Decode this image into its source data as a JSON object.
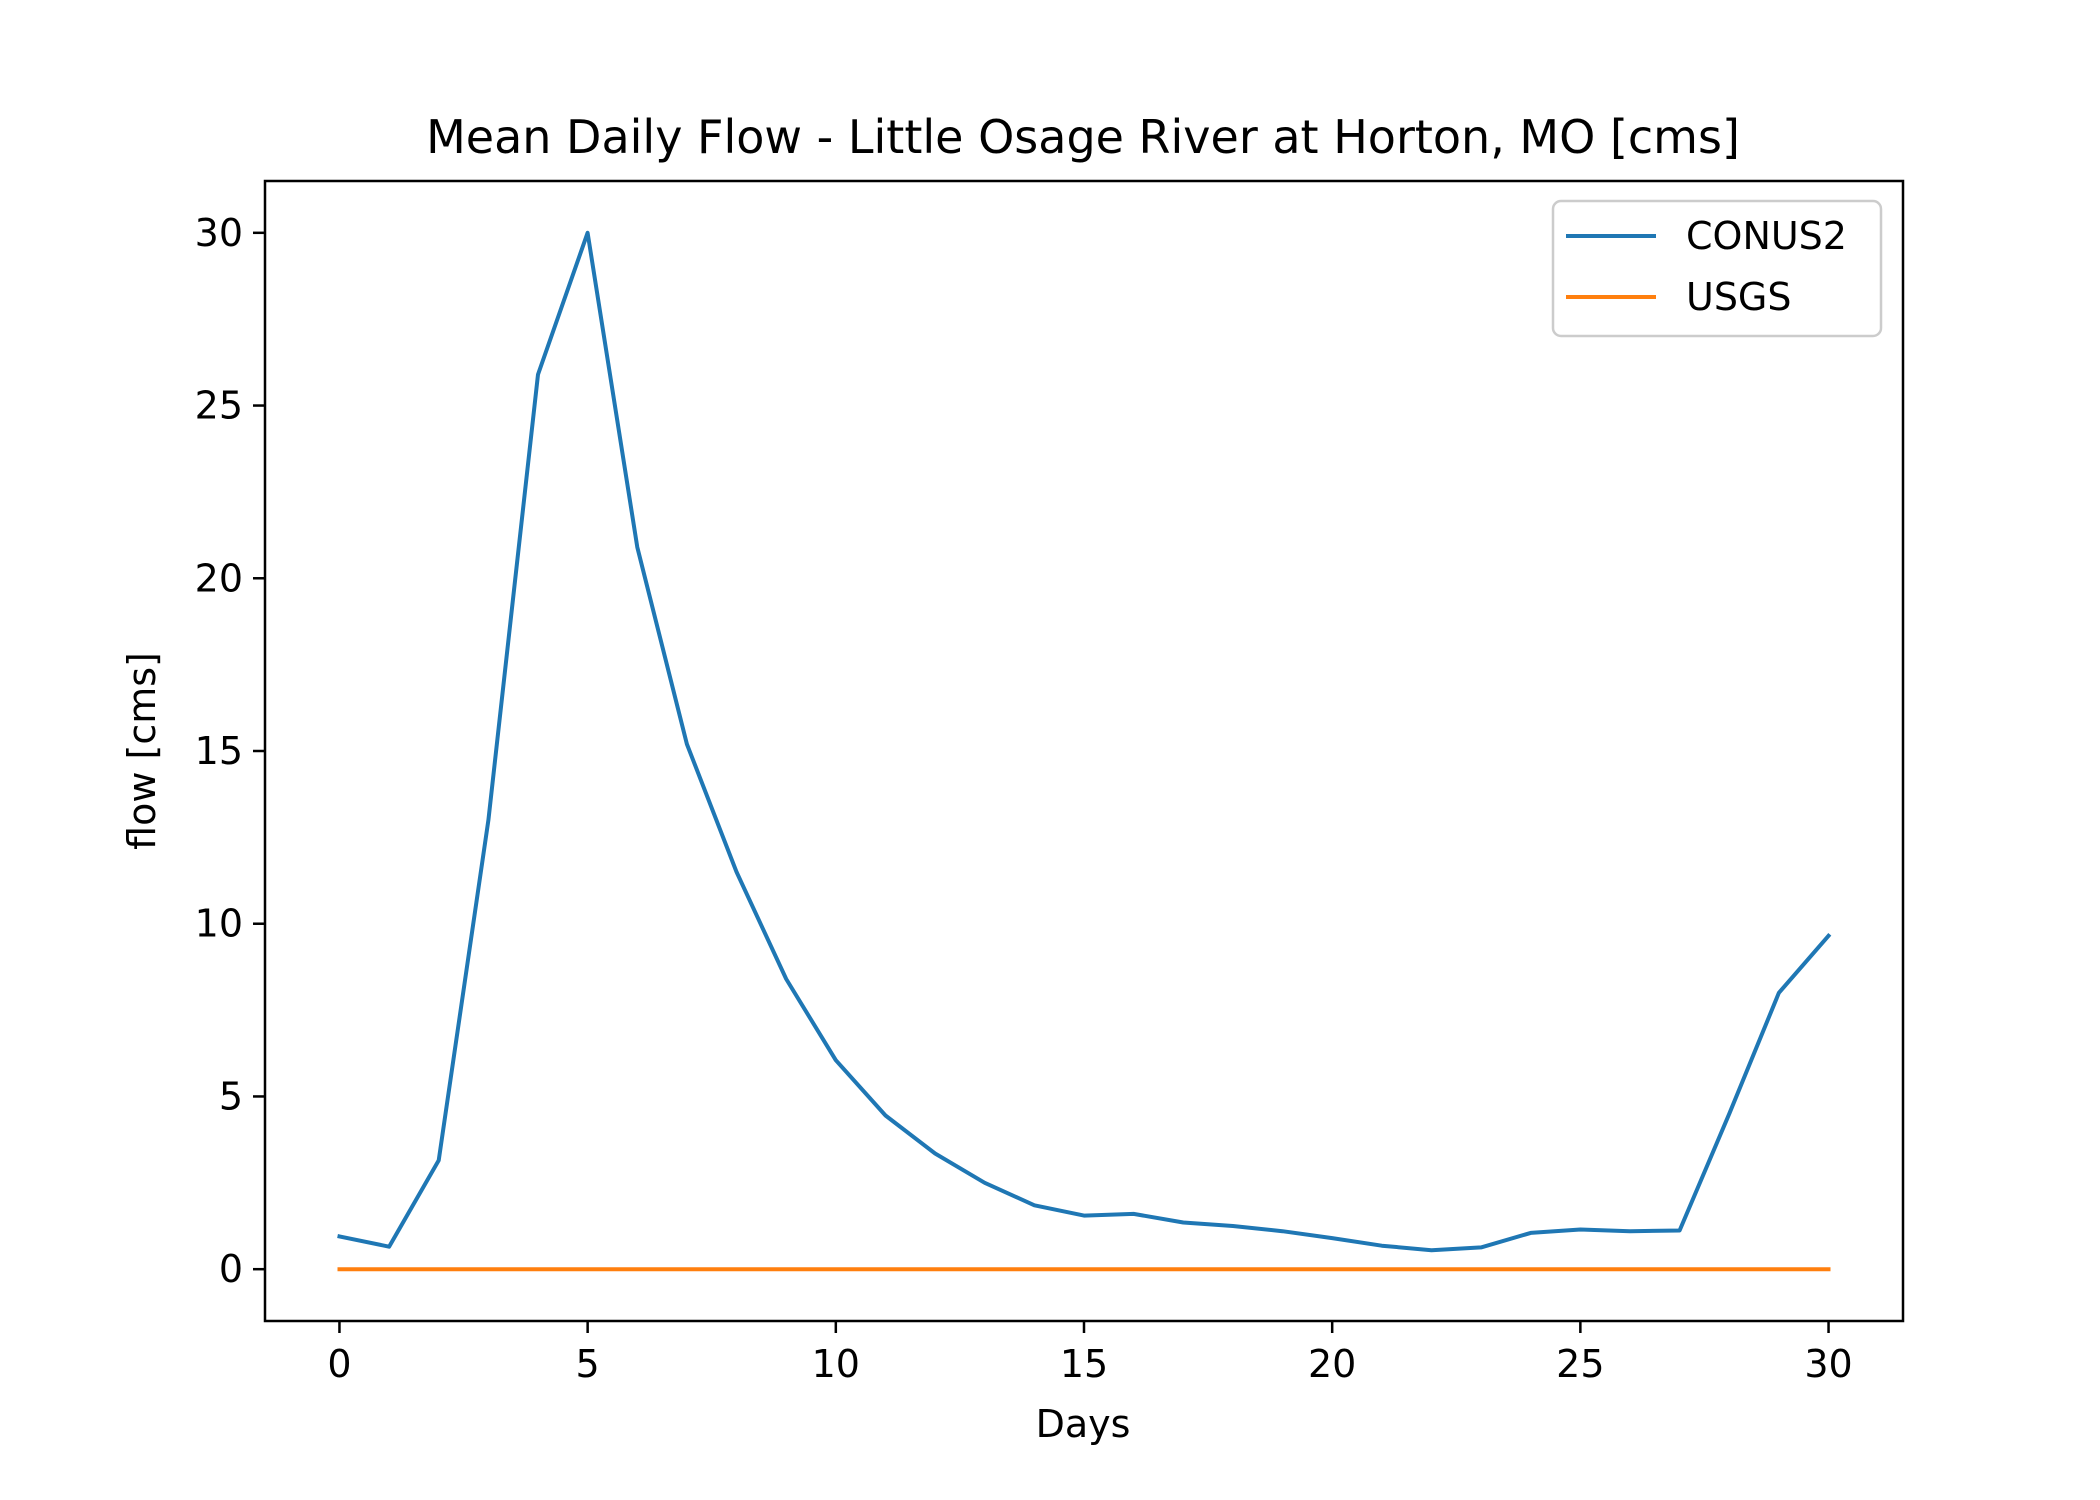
{
  "chart_data": {
    "type": "line",
    "title": "Mean Daily Flow - Little Osage River at Horton, MO [cms]",
    "xlabel": "Days",
    "ylabel": "flow [cms]",
    "xlim": [
      -1.5,
      31.5
    ],
    "ylim": [
      -1.5,
      31.5
    ],
    "xticks": [
      0,
      5,
      10,
      15,
      20,
      25,
      30
    ],
    "yticks": [
      0,
      5,
      10,
      15,
      20,
      25,
      30
    ],
    "grid": false,
    "legend_position": "top-right",
    "x": [
      0,
      1,
      2,
      3,
      4,
      5,
      6,
      7,
      8,
      9,
      10,
      11,
      12,
      13,
      14,
      15,
      16,
      17,
      18,
      19,
      20,
      21,
      22,
      23,
      24,
      25,
      26,
      27,
      28,
      29,
      30
    ],
    "series": [
      {
        "name": "CONUS2",
        "color": "#1f77b4",
        "values": [
          0.95,
          0.65,
          3.15,
          13.0,
          25.9,
          30.0,
          20.9,
          15.2,
          11.5,
          8.4,
          6.05,
          4.45,
          3.35,
          2.5,
          1.85,
          1.55,
          1.6,
          1.35,
          1.25,
          1.1,
          0.9,
          0.68,
          0.55,
          0.63,
          1.05,
          1.15,
          1.1,
          1.12,
          4.5,
          8.0,
          9.65
        ]
      },
      {
        "name": "USGS",
        "color": "#ff7f0e",
        "values": [
          0,
          0,
          0,
          0,
          0,
          0,
          0,
          0,
          0,
          0,
          0,
          0,
          0,
          0,
          0,
          0,
          0,
          0,
          0,
          0,
          0,
          0,
          0,
          0,
          0,
          0,
          0,
          0,
          0,
          0,
          0
        ]
      }
    ]
  }
}
